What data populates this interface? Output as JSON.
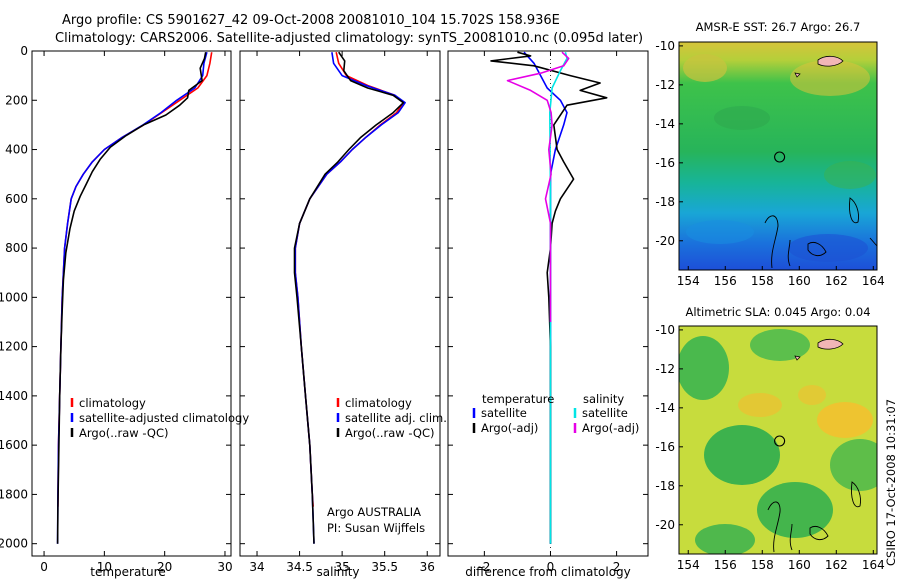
{
  "figure": {
    "title_line1": "Argo profile: CS 5901627_42 09-Oct-2008 20081010_104 15.702S 158.936E",
    "title_line2": "Climatology: CARS2006. Satellite-adjusted climatology: synTS_20081010.nc (0.095d later)",
    "side_stamp": "CSIRO 17-Oct-2008 10:31:07",
    "colors": {
      "climatology": "#ff0000",
      "satellite": "#0000ff",
      "argo": "#000000",
      "sal_satellite": "#00e5e5",
      "sal_argo": "#e600e6"
    }
  },
  "chart_data": [
    {
      "id": "temperature",
      "type": "line",
      "xlabel": "temperature",
      "ylabel": "",
      "xlim": [
        -2,
        31
      ],
      "ylim": [
        2050,
        0
      ],
      "xticks": [
        0,
        10,
        20,
        30
      ],
      "yticks": [
        0,
        200,
        400,
        600,
        800,
        1000,
        1200,
        1400,
        1600,
        1800,
        2000
      ],
      "legend": [
        "climatology",
        "satellite-adjusted climatology",
        "Argo(..raw -QC)"
      ],
      "legend_placement": "lower-middle",
      "series": [
        {
          "name": "climatology",
          "color": "#ff0000",
          "x": [
            27.8,
            27.5,
            27.0,
            25.5,
            22.5,
            19.5,
            16.5,
            13.0,
            10.0,
            8.0,
            6.5,
            5.3,
            4.5,
            3.9,
            3.4,
            3.0,
            2.8,
            2.6,
            2.4,
            2.3
          ],
          "y": [
            5,
            50,
            100,
            150,
            200,
            250,
            300,
            350,
            400,
            450,
            500,
            550,
            600,
            700,
            800,
            1000,
            1200,
            1400,
            1600,
            1850
          ]
        },
        {
          "name": "satellite-adjusted climatology",
          "color": "#0000ff",
          "x": [
            27.0,
            26.5,
            26.3,
            25.0,
            22.0,
            19.4,
            16.4,
            13.0,
            10.0,
            8.0,
            6.5,
            5.3,
            4.5,
            3.9,
            3.4,
            3.0,
            2.8,
            2.6,
            2.4,
            2.3,
            2.25
          ],
          "y": [
            5,
            50,
            100,
            150,
            200,
            250,
            300,
            350,
            400,
            450,
            500,
            550,
            600,
            700,
            800,
            1000,
            1200,
            1400,
            1600,
            1800,
            2000
          ]
        },
        {
          "name": "Argo(..raw -QC)",
          "color": "#000000",
          "x": [
            26.8,
            26.6,
            25.9,
            26.2,
            24.0,
            23.8,
            22.5,
            20.2,
            16.5,
            13.5,
            11.0,
            9.3,
            8.0,
            7.0,
            6.0,
            5.0,
            4.3,
            3.6,
            3.2,
            3.0,
            2.8,
            2.6,
            2.5,
            2.4,
            2.3,
            2.25
          ],
          "y": [
            5,
            30,
            70,
            120,
            160,
            190,
            220,
            260,
            300,
            345,
            390,
            440,
            490,
            540,
            590,
            650,
            720,
            820,
            930,
            1050,
            1200,
            1400,
            1550,
            1700,
            1850,
            2000
          ]
        }
      ]
    },
    {
      "id": "salinity",
      "type": "line",
      "xlabel": "salinity",
      "ylabel": "",
      "xlim": [
        33.8,
        36.15
      ],
      "ylim": [
        2050,
        0
      ],
      "xticks": [
        34,
        34.5,
        35,
        35.5,
        36
      ],
      "yticks": [
        0,
        200,
        400,
        600,
        800,
        1000,
        1200,
        1400,
        1600,
        1800,
        2000
      ],
      "legend": [
        "climatology",
        "satellite adj. clim.",
        "Argo(..raw -QC)"
      ],
      "legend_placement": "lower-right",
      "annotation_line1": "Argo AUSTRALIA",
      "annotation_line2": "PI: Susan Wijffels",
      "series": [
        {
          "name": "climatology",
          "color": "#ff0000",
          "x": [
            34.93,
            34.96,
            35.05,
            35.3,
            35.62,
            35.72,
            35.64,
            35.45,
            35.28,
            35.12,
            34.98,
            34.82,
            34.62,
            34.5,
            34.45,
            34.45,
            34.48,
            34.52,
            34.57,
            34.62,
            34.65,
            34.66
          ],
          "y": [
            5,
            50,
            100,
            140,
            180,
            210,
            250,
            300,
            350,
            400,
            450,
            500,
            600,
            700,
            800,
            900,
            1000,
            1200,
            1400,
            1600,
            1800,
            1850
          ]
        },
        {
          "name": "satellite adj. clim.",
          "color": "#0000ff",
          "x": [
            34.88,
            34.9,
            35.0,
            35.28,
            35.62,
            35.74,
            35.66,
            35.46,
            35.28,
            35.12,
            34.98,
            34.82,
            34.62,
            34.5,
            34.45,
            34.45,
            34.48,
            34.52,
            34.57,
            34.62,
            34.65,
            34.67
          ],
          "y": [
            5,
            50,
            100,
            140,
            180,
            210,
            250,
            300,
            350,
            400,
            450,
            500,
            600,
            700,
            800,
            900,
            1000,
            1200,
            1400,
            1600,
            1800,
            2000
          ]
        },
        {
          "name": "Argo(..raw -QC)",
          "color": "#000000",
          "x": [
            34.96,
            35.03,
            35.02,
            35.1,
            35.3,
            35.6,
            35.72,
            35.6,
            35.4,
            35.22,
            35.08,
            34.95,
            34.8,
            34.62,
            34.5,
            34.44,
            34.44,
            34.47,
            34.52,
            34.57,
            34.62,
            34.65,
            34.67
          ],
          "y": [
            5,
            40,
            80,
            120,
            150,
            180,
            210,
            250,
            300,
            350,
            400,
            450,
            500,
            600,
            700,
            800,
            900,
            1000,
            1200,
            1400,
            1600,
            1800,
            2000
          ]
        }
      ]
    },
    {
      "id": "difference",
      "type": "line",
      "xlabel": "difference from climatology",
      "ylabel": "",
      "xlim": [
        -3.1,
        2.95
      ],
      "ylim": [
        2050,
        0
      ],
      "xticks": [
        -2,
        0,
        2
      ],
      "yticks": [
        0,
        200,
        400,
        600,
        800,
        1000,
        1200,
        1400,
        1600,
        1800,
        2000
      ],
      "legend_temperature_title": "temperature",
      "legend_salinity_title": "salinity",
      "legend_temperature": [
        "satellite",
        "Argo(-adj)"
      ],
      "legend_salinity": [
        "satellite",
        "Argo(-adj)"
      ],
      "series": [
        {
          "name": "satellite",
          "group": "temperature",
          "color": "#0000ff",
          "x": [
            -0.8,
            -0.5,
            -0.3,
            -0.1,
            0.3,
            0.5,
            0.4,
            0.15,
            0.0,
            0.0,
            0.0,
            0.0
          ],
          "y": [
            5,
            50,
            100,
            150,
            200,
            250,
            300,
            400,
            500,
            700,
            1000,
            2000
          ]
        },
        {
          "name": "Argo(-adj)",
          "group": "temperature",
          "color": "#000000",
          "x": [
            -1.0,
            -0.6,
            -1.8,
            -0.5,
            0.6,
            1.5,
            0.9,
            1.7,
            0.5,
            0.1,
            0.2,
            0.4,
            0.7,
            0.3,
            0.15,
            0.05,
            0.0,
            -0.1,
            -0.05,
            0.0,
            0.0,
            0.0
          ],
          "y": [
            5,
            20,
            40,
            60,
            100,
            130,
            160,
            190,
            220,
            300,
            400,
            450,
            520,
            600,
            650,
            700,
            800,
            900,
            1000,
            1200,
            1600,
            2000
          ]
        },
        {
          "name": "satellite",
          "group": "salinity",
          "color": "#00e5e5",
          "x": [
            0.45,
            0.5,
            0.3,
            0.05,
            -0.02,
            -0.01,
            0.0,
            0.0,
            0.0
          ],
          "y": [
            5,
            30,
            80,
            150,
            250,
            400,
            600,
            1000,
            2000
          ]
        },
        {
          "name": "Argo(-adj)",
          "group": "salinity",
          "color": "#e600e6",
          "x": [
            0.35,
            0.55,
            0.4,
            -0.3,
            -1.3,
            -0.6,
            -0.1,
            0.02,
            0.05,
            0.0,
            -0.05,
            0.02,
            -0.15,
            0.0,
            0.0,
            0.0
          ],
          "y": [
            5,
            30,
            60,
            90,
            120,
            160,
            200,
            250,
            300,
            350,
            400,
            500,
            600,
            700,
            900,
            1100
          ]
        }
      ]
    },
    {
      "id": "sst_map",
      "type": "heatmap",
      "title": "AMSR-E SST: 26.7 Argo: 26.7",
      "xlim": [
        153.5,
        164.2
      ],
      "ylim": [
        -21.5,
        -9.8
      ],
      "xticks": [
        154,
        156,
        158,
        160,
        162,
        164
      ],
      "yticks": [
        -10,
        -12,
        -14,
        -16,
        -18,
        -20
      ],
      "marker": {
        "lon": 158.936,
        "lat": -15.702
      }
    },
    {
      "id": "sla_map",
      "type": "heatmap",
      "title": "Altimetric SLA: 0.045 Argo: 0.04",
      "xlim": [
        153.5,
        164.2
      ],
      "ylim": [
        -21.5,
        -9.8
      ],
      "xticks": [
        154,
        156,
        158,
        160,
        162,
        164
      ],
      "yticks": [
        -10,
        -12,
        -14,
        -16,
        -18,
        -20
      ],
      "marker": {
        "lon": 158.936,
        "lat": -15.702
      }
    }
  ]
}
